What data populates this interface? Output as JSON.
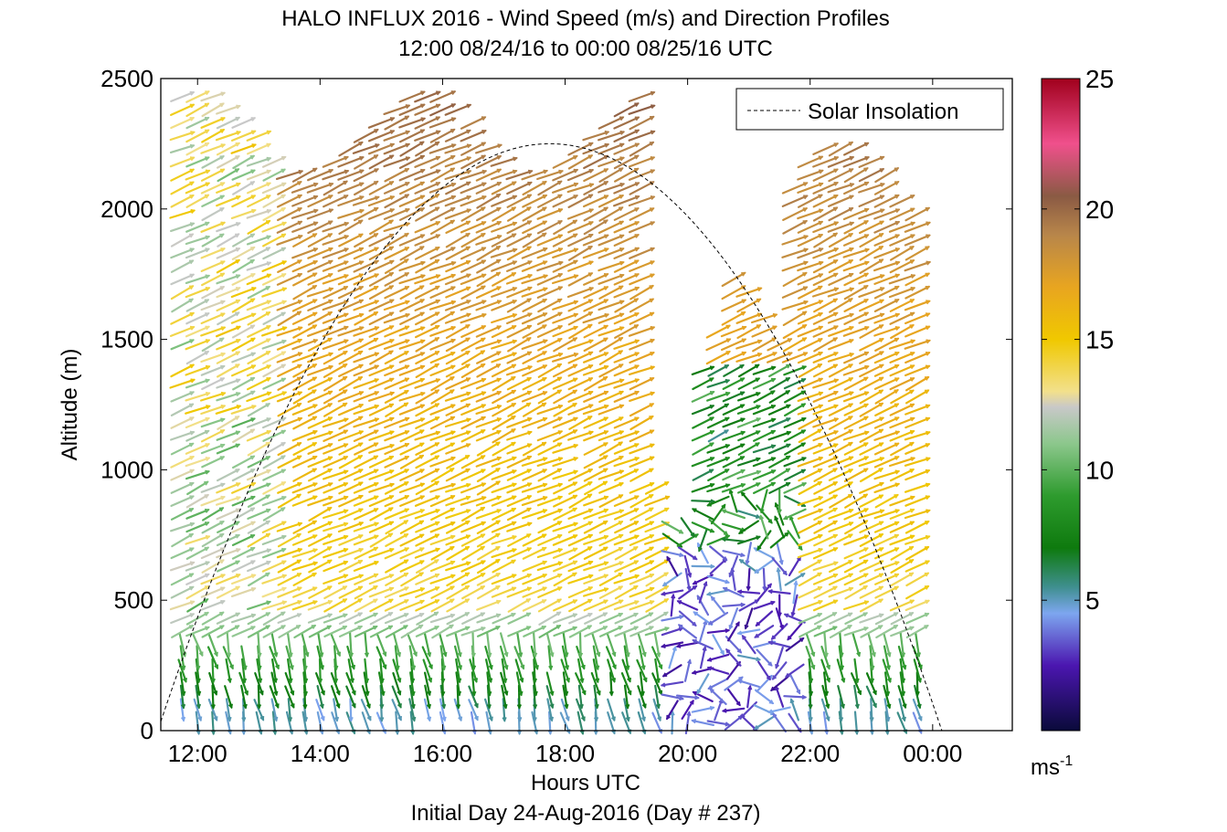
{
  "chart_data": {
    "type": "wind-barb-profile",
    "title_line1": "HALO INFLUX 2016 - Wind Speed (m/s) and Direction Profiles",
    "title_line2": "12:00 08/24/16 to 00:00 08/25/16  UTC",
    "xlabel": "Hours UTC",
    "xlabel_sub": "Initial Day 24-Aug-2016 (Day # 237)",
    "ylabel": "Altitude (m)",
    "x_ticks": [
      "12:00",
      "14:00",
      "16:00",
      "18:00",
      "20:00",
      "22:00",
      "00:00"
    ],
    "x_tick_hours": [
      12,
      14,
      16,
      18,
      20,
      22,
      24
    ],
    "xlim_hours": [
      11.4,
      25.3
    ],
    "ylim": [
      0,
      2500
    ],
    "y_ticks": [
      0,
      500,
      1000,
      1500,
      2000,
      2500
    ],
    "legend": {
      "label": "Solar Insolation",
      "placement": "top-right",
      "style": "dashed"
    },
    "solar_insolation": {
      "peak_hour": 17.75,
      "peak_altitude_m": 2250,
      "width_hours": 6.4
    },
    "colorbar": {
      "ticks": [
        5,
        10,
        15,
        20,
        25
      ],
      "range": [
        0,
        25
      ],
      "unit": "ms",
      "unit_exponent": "-1",
      "stops": [
        {
          "v": 0,
          "c": "#0a0a3a"
        },
        {
          "v": 2.5,
          "c": "#4b16b0"
        },
        {
          "v": 4.5,
          "c": "#7da6ef"
        },
        {
          "v": 5.5,
          "c": "#3f8f8f"
        },
        {
          "v": 7,
          "c": "#0e7a0e"
        },
        {
          "v": 9,
          "c": "#2e9b2e"
        },
        {
          "v": 11,
          "c": "#8cc78c"
        },
        {
          "v": 12.4,
          "c": "#c8c8c8"
        },
        {
          "v": 13,
          "c": "#f2e08c"
        },
        {
          "v": 15,
          "c": "#f0c800"
        },
        {
          "v": 17,
          "c": "#e8a520"
        },
        {
          "v": 19,
          "c": "#b8864a"
        },
        {
          "v": 20.5,
          "c": "#8a5a44"
        },
        {
          "v": 22.5,
          "c": "#f0508c"
        },
        {
          "v": 25,
          "c": "#a0001c"
        }
      ]
    },
    "profile_start_hour": 11.75,
    "profile_step_hours": 0.25,
    "profile_count": 49,
    "altitude_step_m": 50
  }
}
